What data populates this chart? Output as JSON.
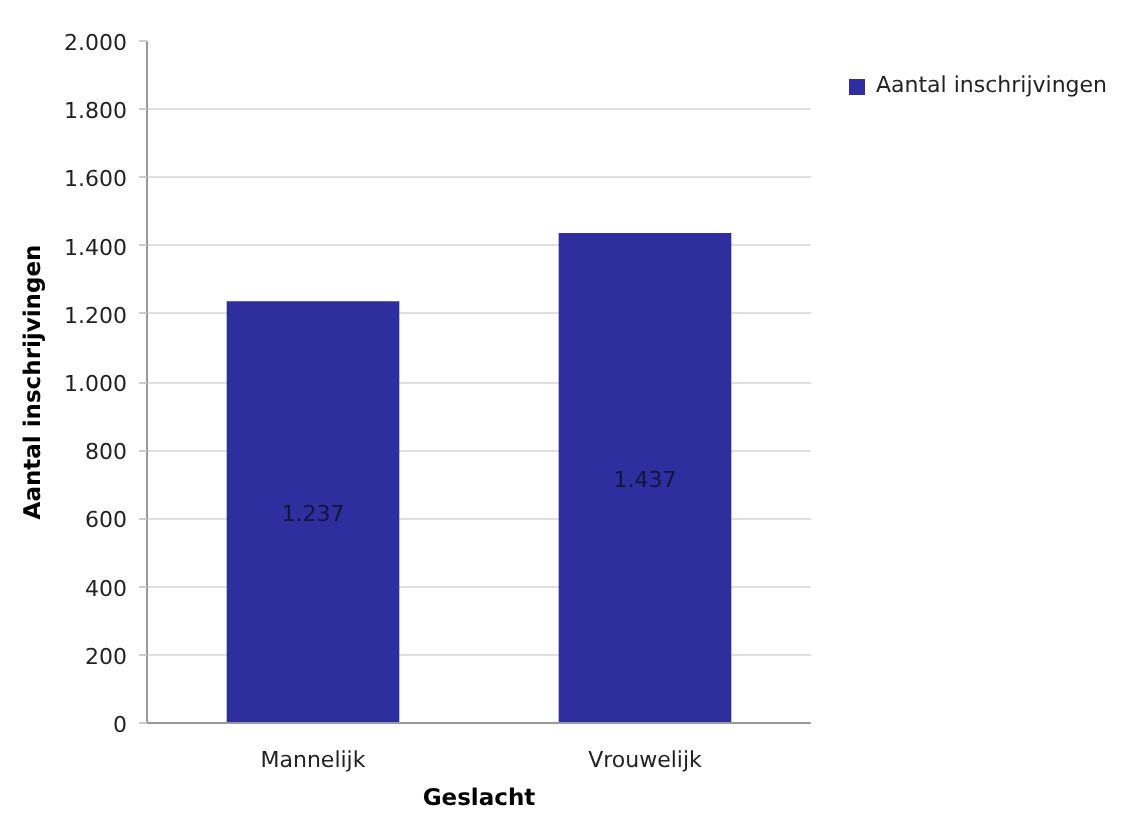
{
  "chart_data": {
    "type": "bar",
    "xlabel": "Geslacht",
    "ylabel": "Aantal inschrijvingen",
    "categories": [
      "Mannelijk",
      "Vrouwelijk"
    ],
    "series": [
      {
        "name": "Aantal inschrijvingen",
        "color": "#2e2e9e",
        "values": [
          1237,
          1437
        ],
        "value_labels": [
          "1.237",
          "1.437"
        ]
      }
    ],
    "ylim": [
      0,
      2000
    ],
    "yticks": [
      {
        "value": 0,
        "label": "0"
      },
      {
        "value": 200,
        "label": "200"
      },
      {
        "value": 400,
        "label": "400"
      },
      {
        "value": 600,
        "label": "600"
      },
      {
        "value": 800,
        "label": "800"
      },
      {
        "value": 1000,
        "label": "1.000"
      },
      {
        "value": 1200,
        "label": "1.200"
      },
      {
        "value": 1400,
        "label": "1.400"
      },
      {
        "value": 1600,
        "label": "1.600"
      },
      {
        "value": 1800,
        "label": "1.800"
      },
      {
        "value": 2000,
        "label": "2.000"
      }
    ],
    "grid": "y",
    "legend": "top right"
  }
}
